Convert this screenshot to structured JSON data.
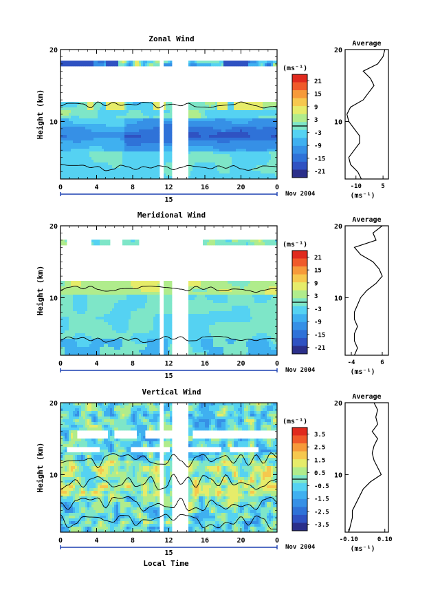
{
  "figure": {
    "x_axis_label": "Local Time",
    "date_label": "Nov 2004",
    "day_label": "15",
    "unit_label": "(ms⁻¹)",
    "average_title": "Average",
    "height_label": "Height (km)",
    "colors": {
      "scale": [
        "#2b2f8a",
        "#2f52c2",
        "#2f72d8",
        "#3690e6",
        "#3fb0f0",
        "#55d2f2",
        "#7ee6c8",
        "#b0ec8c",
        "#e6ec6a",
        "#f6c84e",
        "#f69a3a",
        "#f05a2a",
        "#e02a1e"
      ],
      "gap": "#ffffff",
      "contour": "#000000"
    }
  },
  "chart_data": [
    {
      "type": "heatmap",
      "title": "Zonal Wind",
      "x_ticks": [
        "0",
        "4",
        "8",
        "12",
        "16",
        "20",
        "0"
      ],
      "xlim": [
        0,
        24
      ],
      "y_ticks": [
        "10",
        "20"
      ],
      "ylim": [
        2,
        20
      ],
      "colorbar_ticks": [
        "21",
        "15",
        "9",
        "3",
        "-3",
        "-9",
        "-15",
        "-21"
      ],
      "colorbar_range": [
        -24,
        24
      ],
      "profile": {
        "title": "Average",
        "xlabel": "(ms⁻¹)",
        "x_ticks": [
          "-10",
          "5"
        ],
        "x_tick_values": [
          -10,
          5
        ],
        "xlim": [
          -16,
          8
        ],
        "y_ticks": [
          "10",
          "20"
        ],
        "height": [
          2,
          3,
          4,
          5,
          6,
          7,
          8,
          9,
          10,
          11,
          12,
          13,
          14,
          15,
          16,
          17,
          18,
          19,
          20
        ],
        "value": [
          -7,
          -9,
          -13,
          -14,
          -11,
          -8,
          -8,
          -11,
          -14,
          -15,
          -13,
          -6,
          -3,
          0,
          -2,
          -6,
          2,
          5,
          6
        ]
      }
    },
    {
      "type": "heatmap",
      "title": "Meridional Wind",
      "x_ticks": [
        "0",
        "4",
        "8",
        "12",
        "16",
        "20",
        "0"
      ],
      "xlim": [
        0,
        24
      ],
      "y_ticks": [
        "10",
        "20"
      ],
      "ylim": [
        2,
        20
      ],
      "colorbar_ticks": [
        "21",
        "15",
        "9",
        "3",
        "-3",
        "-9",
        "-15",
        "-21"
      ],
      "colorbar_range": [
        -24,
        24
      ],
      "profile": {
        "title": "Average",
        "xlabel": "(ms⁻¹)",
        "x_ticks": [
          "-4",
          "6"
        ],
        "x_tick_values": [
          -4,
          6
        ],
        "xlim": [
          -6,
          8
        ],
        "y_ticks": [
          "10",
          "20"
        ],
        "height": [
          2,
          3,
          4,
          5,
          6,
          7,
          8,
          9,
          10,
          11,
          12,
          13,
          14,
          15,
          16,
          17,
          18,
          19,
          20
        ],
        "value": [
          -3,
          -2,
          -3,
          -3,
          -2,
          -3,
          -3,
          -2,
          -1,
          1,
          4,
          6,
          5,
          3,
          -1,
          -3,
          4,
          3,
          6
        ]
      }
    },
    {
      "type": "heatmap",
      "title": "Vertical Wind",
      "x_ticks": [
        "0",
        "4",
        "8",
        "12",
        "16",
        "20",
        "0"
      ],
      "xlim": [
        0,
        24
      ],
      "y_ticks": [
        "10",
        "20"
      ],
      "ylim": [
        2,
        20
      ],
      "colorbar_ticks": [
        "3.5",
        "2.5",
        "1.5",
        "0.5",
        "-0.5",
        "-1.5",
        "-2.5",
        "-3.5"
      ],
      "colorbar_range": [
        -4,
        4
      ],
      "profile": {
        "title": "Average",
        "xlabel": "(ms⁻¹)",
        "x_ticks": [
          "-0.10",
          "0.10"
        ],
        "x_tick_values": [
          -0.1,
          0.1
        ],
        "xlim": [
          -0.12,
          0.12
        ],
        "y_ticks": [
          "10",
          "20"
        ],
        "height": [
          2,
          3,
          4,
          5,
          6,
          7,
          8,
          9,
          10,
          11,
          12,
          13,
          14,
          15,
          16,
          17,
          18,
          19,
          20
        ],
        "value": [
          -0.1,
          -0.09,
          -0.08,
          -0.08,
          -0.06,
          -0.04,
          -0.02,
          0.02,
          0.08,
          0.06,
          0.04,
          0.03,
          0.04,
          0.06,
          0.03,
          0.06,
          0.05,
          0.06,
          0.04
        ]
      }
    }
  ]
}
